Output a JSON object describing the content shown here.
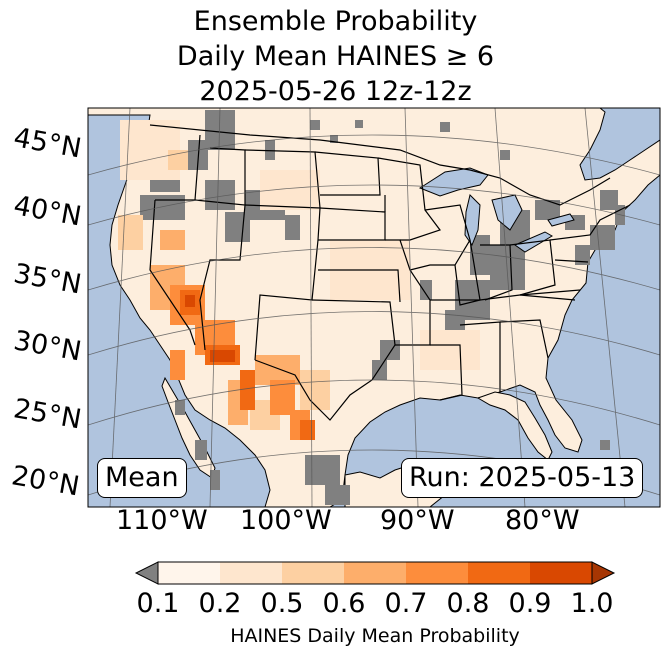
{
  "title": {
    "line1": "Ensemble Probability",
    "line2": "Daily Mean HAINES ≥ 6",
    "line3": "2025-05-26 12z-12z"
  },
  "map": {
    "lat_labels": [
      "45°N",
      "40°N",
      "35°N",
      "30°N",
      "25°N",
      "20°N"
    ],
    "lon_labels": [
      "110°W",
      "100°W",
      "90°W",
      "80°W"
    ],
    "stat_label": "Mean",
    "run_label": "Run: 2025-05-13",
    "colors": {
      "ocean": "#b0c4de",
      "land": "#fdeedd",
      "missing": "#808080",
      "graticule": "#555555"
    }
  },
  "colorbar": {
    "title": "HAINES Daily Mean Probability",
    "ticks": [
      "0.1",
      "0.2",
      "0.5",
      "0.6",
      "0.7",
      "0.8",
      "0.9",
      "1.0"
    ],
    "colors": [
      "#fff5eb",
      "#fee6ce",
      "#fdd0a2",
      "#fdae6b",
      "#fd8d3c",
      "#f16913",
      "#d94801"
    ],
    "under_color": "#808080",
    "over_color": "#a63603"
  }
}
